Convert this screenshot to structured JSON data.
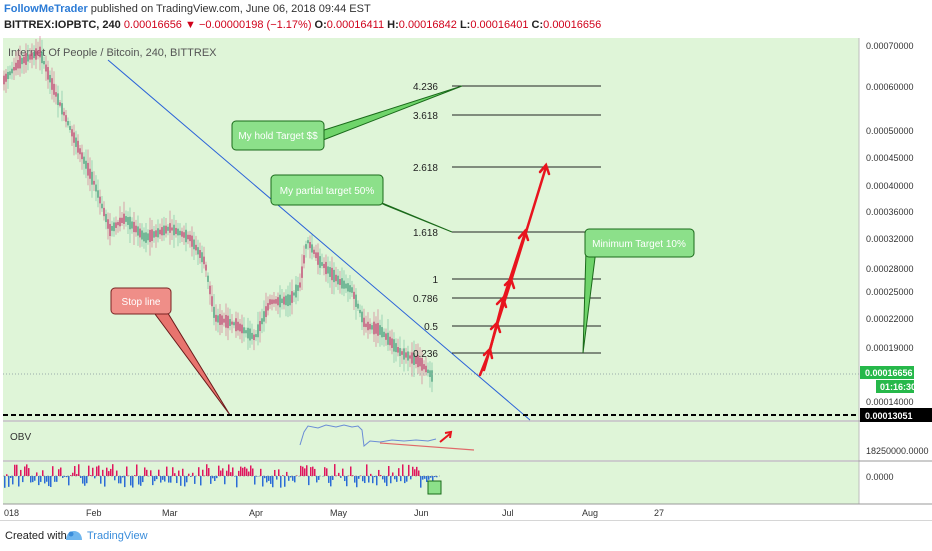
{
  "header": {
    "author": "FollowMeTrader",
    "published_text": " published on TradingView.com, June 06, 2018 09:44 EST",
    "symbol_text": "BITTREX:IOPBTC, 240",
    "last_price": "0.00016656",
    "change_text": "▼ −0.00000198 (−1.17%)",
    "ohlc": {
      "o_label": "O:",
      "o": "0.00016411",
      "h_label": "H:",
      "h": "0.00016842",
      "l_label": "L:",
      "l": "0.00016401",
      "c_label": "C:",
      "c": "0.00016656"
    }
  },
  "chart": {
    "watermark": "Internet Of People / Bitcoin, 240, BITTREX",
    "background_color": "#dff5d8",
    "price_axis_labels": [
      "0.00070000",
      "0.00060000",
      "0.00050000",
      "0.00045000",
      "0.00040000",
      "0.00036000",
      "0.00032000",
      "0.00028000",
      "0.00025000",
      "0.00022000",
      "0.00019000",
      "0.00014000"
    ],
    "current_price_tag": "0.00016656",
    "countdown_tag": "01:16:30",
    "stop_price_tag": "0.00013051",
    "obv_label": "OBV",
    "obv_axis_label": "18250000.0000",
    "osc_axis_label": "0.0000",
    "time_labels": [
      "018",
      "Feb",
      "Mar",
      "Apr",
      "May",
      "Jun",
      "Jul",
      "Aug",
      "27"
    ],
    "fib_levels": [
      "4.236",
      "3.618",
      "2.618",
      "1.618",
      "1",
      "0.786",
      "0.5",
      "0.236"
    ],
    "callouts": {
      "hold_target": "My hold Target $$",
      "partial_target": "My partial target 50%",
      "minimum_target": "Minimum Target 10%",
      "stop_line": "Stop line"
    }
  },
  "footer": {
    "created_with": "Created with",
    "brand": "TradingView"
  }
}
